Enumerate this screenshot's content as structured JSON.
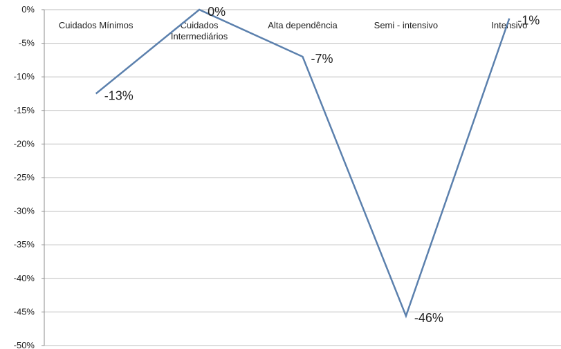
{
  "chart_data": {
    "type": "line",
    "categories": [
      "Cuidados Mínimos",
      "Cuidados Intermediários",
      "Alta dependência",
      "Semi - intensivo",
      "Intensivo"
    ],
    "series": [
      {
        "values": [
          -12.5,
          0,
          -7,
          -45.6,
          -1.3
        ]
      }
    ],
    "data_labels": [
      "-13%",
      "0%",
      "-7%",
      "-46%",
      "-1%"
    ],
    "y_ticks": [
      "0%",
      "-5%",
      "-10%",
      "-15%",
      "-20%",
      "-25%",
      "-30%",
      "-35%",
      "-40%",
      "-45%",
      "-50%"
    ],
    "ylim": [
      -50,
      0
    ],
    "grid": true,
    "legend": "none",
    "line_color": "#5b80ad",
    "grid_color": "#bdbdbd",
    "axis_color": "#8c8c8c"
  }
}
